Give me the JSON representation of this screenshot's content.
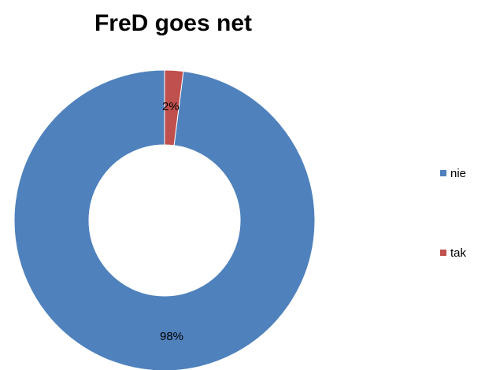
{
  "chart_data": {
    "type": "pie",
    "variant": "doughnut",
    "title": "FreD goes net",
    "categories": [
      "nie",
      "tak"
    ],
    "values": [
      98,
      2
    ],
    "data_labels": [
      "98%",
      "2%"
    ],
    "colors": [
      "#4F81BD",
      "#C0504D"
    ],
    "legend": {
      "position": "right",
      "entries": [
        "nie",
        "tak"
      ]
    }
  }
}
